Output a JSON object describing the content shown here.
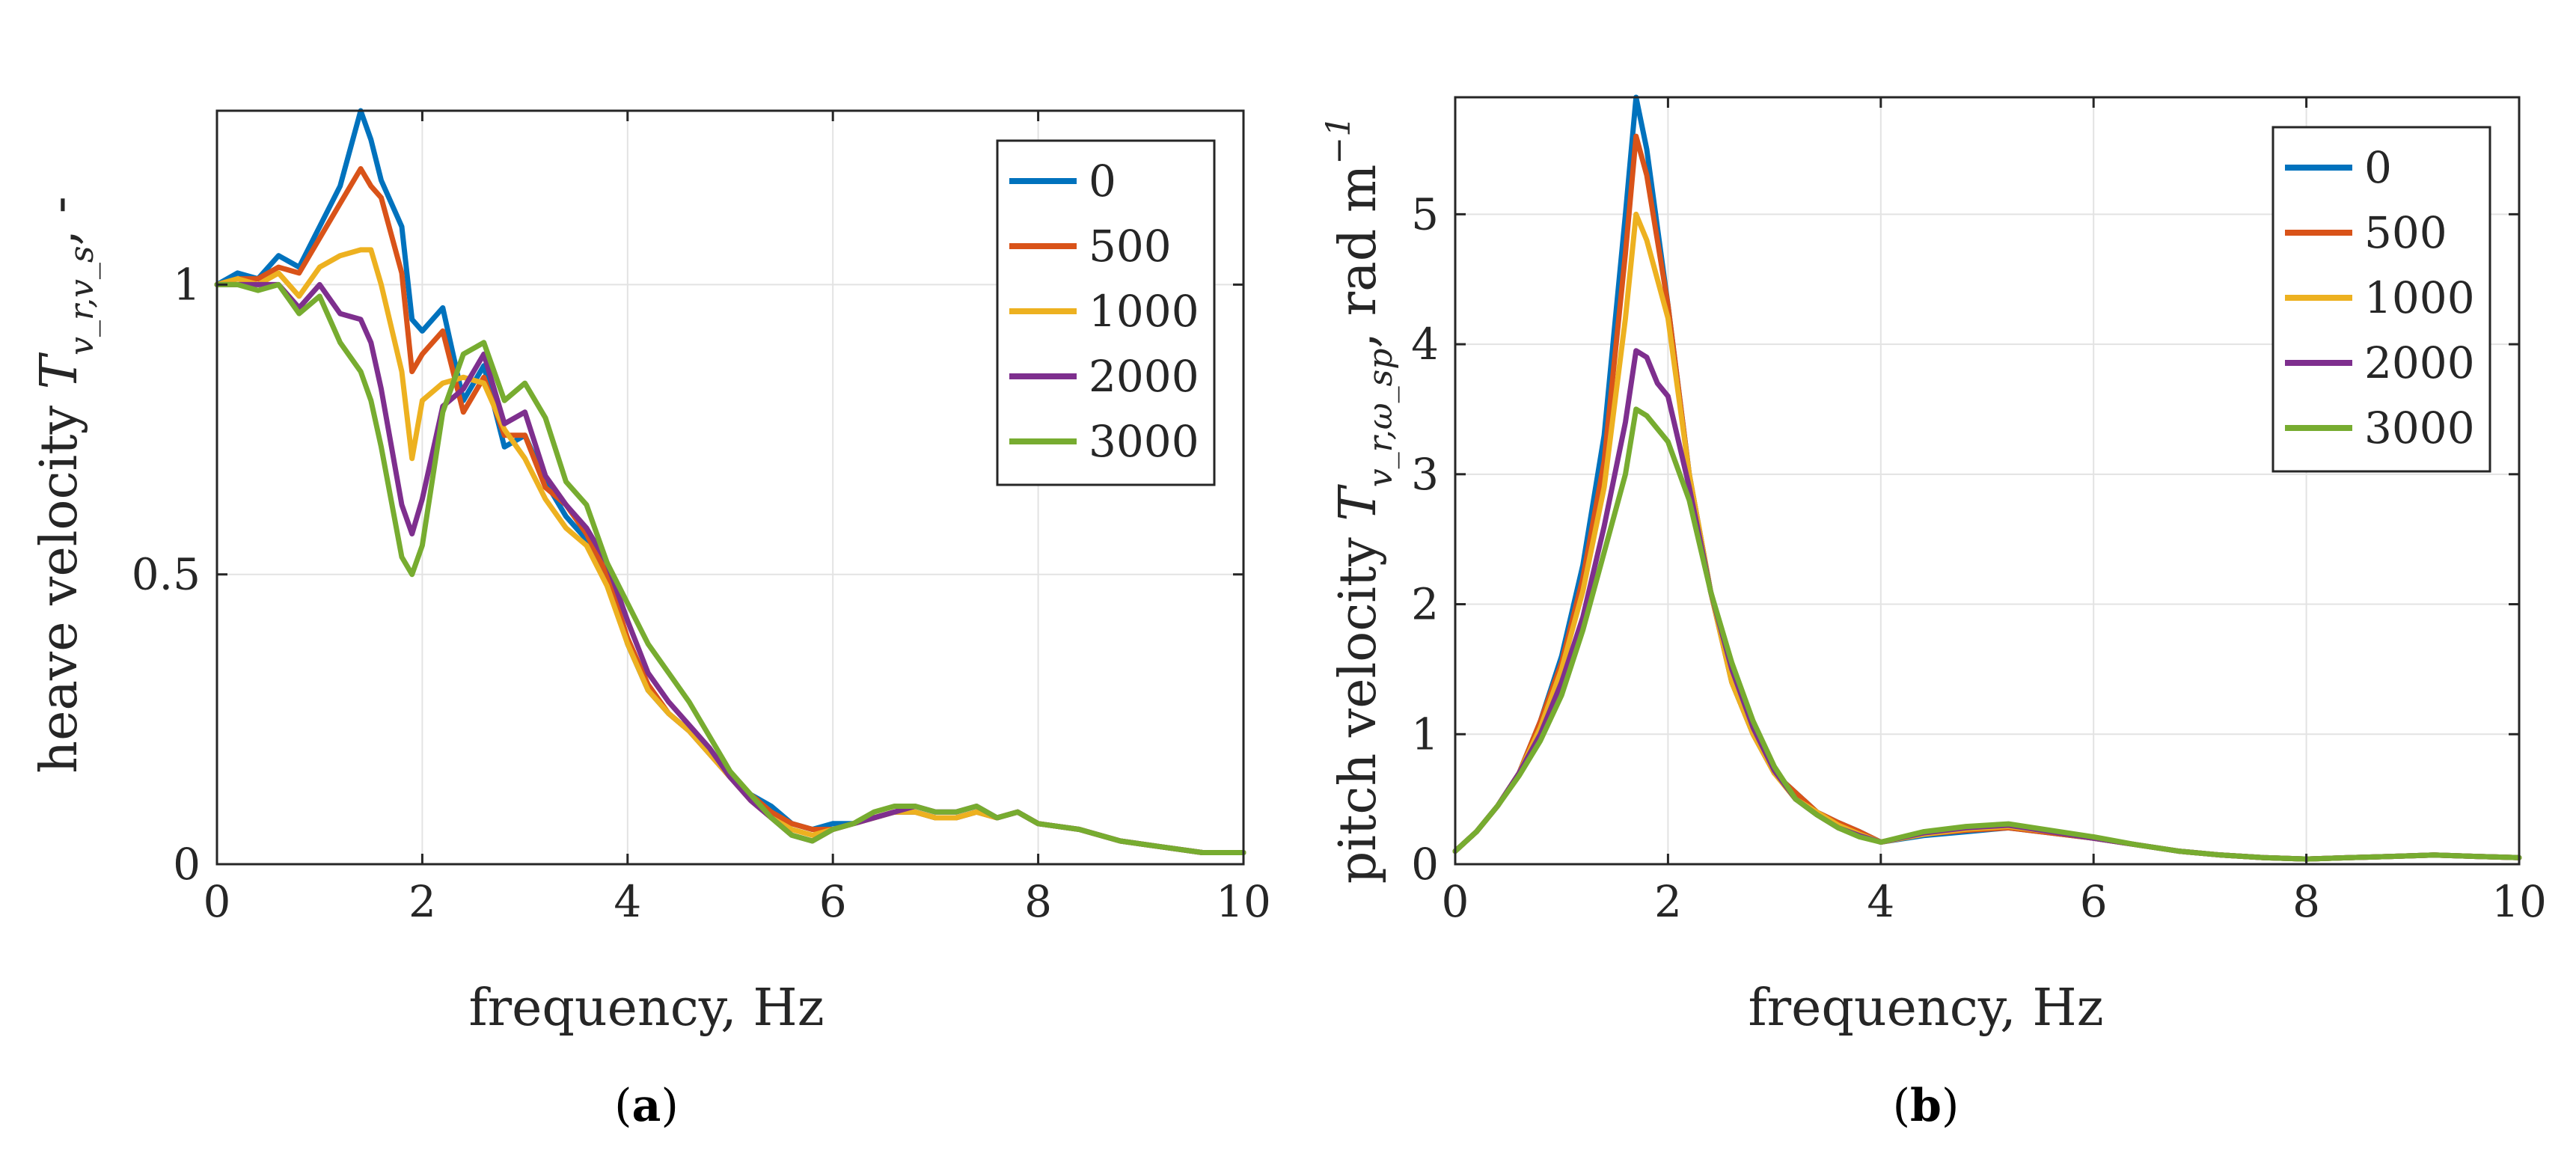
{
  "colors": {
    "s0": "#0072BD",
    "s500": "#D95319",
    "s1000": "#EDB120",
    "s2000": "#7E2F8E",
    "s3000": "#77AC30",
    "grid": "#e3e3e3",
    "axis": "#262626"
  },
  "chart_data": [
    {
      "type": "line",
      "panel": "(a)",
      "panel_paren_open": "(",
      "panel_letter": "a",
      "panel_paren_close": ")",
      "xlabel": "frequency, Hz",
      "ylabel_main": "heave velocity ",
      "ylabel_symbol": "T",
      "ylabel_sub": "v_r,v_s",
      "ylabel_tail": ", -",
      "xlim": [
        0,
        10
      ],
      "ylim": [
        0,
        1.3
      ],
      "xticks": [
        0,
        2,
        4,
        6,
        8,
        10
      ],
      "xtick_labels": [
        "0",
        "2",
        "4",
        "6",
        "8",
        "10"
      ],
      "yticks": [
        0,
        0.5,
        1
      ],
      "ytick_labels": [
        "0",
        "0.5",
        "1"
      ],
      "legend_position": "top-right",
      "series": [
        {
          "name": "0",
          "color_key": "s0",
          "x": [
            0,
            0.2,
            0.4,
            0.6,
            0.8,
            1.0,
            1.2,
            1.4,
            1.5,
            1.6,
            1.8,
            1.9,
            2.0,
            2.2,
            2.4,
            2.6,
            2.8,
            3.0,
            3.2,
            3.4,
            3.6,
            3.8,
            4.0,
            4.2,
            4.4,
            4.6,
            4.8,
            5.0,
            5.2,
            5.4,
            5.6,
            5.8,
            6.0,
            6.2,
            6.4,
            6.6,
            6.8,
            7.0,
            7.2,
            7.4,
            7.6,
            7.8,
            8.0,
            8.4,
            8.8,
            9.2,
            9.6,
            10.0
          ],
          "y": [
            1.0,
            1.02,
            1.01,
            1.05,
            1.03,
            1.1,
            1.17,
            1.3,
            1.25,
            1.18,
            1.1,
            0.94,
            0.92,
            0.96,
            0.8,
            0.86,
            0.72,
            0.74,
            0.66,
            0.6,
            0.56,
            0.5,
            0.38,
            0.3,
            0.26,
            0.23,
            0.19,
            0.15,
            0.12,
            0.1,
            0.07,
            0.06,
            0.07,
            0.07,
            0.08,
            0.09,
            0.09,
            0.08,
            0.08,
            0.09,
            0.08,
            0.09,
            0.07,
            0.06,
            0.04,
            0.03,
            0.02,
            0.02
          ]
        },
        {
          "name": "500",
          "color_key": "s500",
          "x": [
            0,
            0.2,
            0.4,
            0.6,
            0.8,
            1.0,
            1.2,
            1.4,
            1.5,
            1.6,
            1.8,
            1.9,
            2.0,
            2.2,
            2.4,
            2.6,
            2.8,
            3.0,
            3.2,
            3.4,
            3.6,
            3.8,
            4.0,
            4.2,
            4.4,
            4.6,
            4.8,
            5.0,
            5.2,
            5.4,
            5.6,
            5.8,
            6.0,
            6.2,
            6.4,
            6.6,
            6.8,
            7.0,
            7.2,
            7.4,
            7.6,
            7.8,
            8.0,
            8.4,
            8.8,
            9.2,
            9.6,
            10.0
          ],
          "y": [
            1.0,
            1.01,
            1.01,
            1.03,
            1.02,
            1.08,
            1.14,
            1.2,
            1.17,
            1.15,
            1.02,
            0.85,
            0.88,
            0.92,
            0.78,
            0.84,
            0.74,
            0.74,
            0.65,
            0.62,
            0.57,
            0.5,
            0.39,
            0.31,
            0.26,
            0.23,
            0.19,
            0.15,
            0.12,
            0.09,
            0.07,
            0.06,
            0.06,
            0.07,
            0.08,
            0.09,
            0.09,
            0.08,
            0.08,
            0.09,
            0.08,
            0.09,
            0.07,
            0.06,
            0.04,
            0.03,
            0.02,
            0.02
          ]
        },
        {
          "name": "1000",
          "color_key": "s1000",
          "x": [
            0,
            0.2,
            0.4,
            0.6,
            0.8,
            1.0,
            1.2,
            1.4,
            1.5,
            1.6,
            1.8,
            1.9,
            2.0,
            2.2,
            2.4,
            2.6,
            2.8,
            3.0,
            3.2,
            3.4,
            3.6,
            3.8,
            4.0,
            4.2,
            4.4,
            4.6,
            4.8,
            5.0,
            5.2,
            5.4,
            5.6,
            5.8,
            6.0,
            6.2,
            6.4,
            6.6,
            6.8,
            7.0,
            7.2,
            7.4,
            7.6,
            7.8,
            8.0,
            8.4,
            8.8,
            9.2,
            9.6,
            10.0
          ],
          "y": [
            1.0,
            1.01,
            1.0,
            1.02,
            0.98,
            1.03,
            1.05,
            1.06,
            1.06,
            1.0,
            0.85,
            0.7,
            0.8,
            0.83,
            0.84,
            0.83,
            0.75,
            0.7,
            0.63,
            0.58,
            0.55,
            0.48,
            0.38,
            0.3,
            0.26,
            0.23,
            0.19,
            0.15,
            0.11,
            0.08,
            0.06,
            0.05,
            0.06,
            0.07,
            0.08,
            0.09,
            0.09,
            0.08,
            0.08,
            0.09,
            0.08,
            0.09,
            0.07,
            0.06,
            0.04,
            0.03,
            0.02,
            0.02
          ]
        },
        {
          "name": "2000",
          "color_key": "s2000",
          "x": [
            0,
            0.2,
            0.4,
            0.6,
            0.8,
            1.0,
            1.2,
            1.4,
            1.5,
            1.6,
            1.8,
            1.9,
            2.0,
            2.2,
            2.4,
            2.6,
            2.8,
            3.0,
            3.2,
            3.4,
            3.6,
            3.8,
            4.0,
            4.2,
            4.4,
            4.6,
            4.8,
            5.0,
            5.2,
            5.4,
            5.6,
            5.8,
            6.0,
            6.2,
            6.4,
            6.6,
            6.8,
            7.0,
            7.2,
            7.4,
            7.6,
            7.8,
            8.0,
            8.4,
            8.8,
            9.2,
            9.6,
            10.0
          ],
          "y": [
            1.0,
            1.0,
            1.0,
            1.0,
            0.96,
            1.0,
            0.95,
            0.94,
            0.9,
            0.82,
            0.62,
            0.57,
            0.63,
            0.79,
            0.82,
            0.88,
            0.76,
            0.78,
            0.67,
            0.62,
            0.58,
            0.52,
            0.42,
            0.33,
            0.28,
            0.24,
            0.2,
            0.15,
            0.11,
            0.08,
            0.05,
            0.04,
            0.06,
            0.07,
            0.08,
            0.09,
            0.1,
            0.09,
            0.09,
            0.1,
            0.08,
            0.09,
            0.07,
            0.06,
            0.04,
            0.03,
            0.02,
            0.02
          ]
        },
        {
          "name": "3000",
          "color_key": "s3000",
          "x": [
            0,
            0.2,
            0.4,
            0.6,
            0.8,
            1.0,
            1.2,
            1.4,
            1.5,
            1.6,
            1.8,
            1.9,
            2.0,
            2.2,
            2.4,
            2.6,
            2.8,
            3.0,
            3.2,
            3.4,
            3.6,
            3.8,
            4.0,
            4.2,
            4.4,
            4.6,
            4.8,
            5.0,
            5.2,
            5.4,
            5.6,
            5.8,
            6.0,
            6.2,
            6.4,
            6.6,
            6.8,
            7.0,
            7.2,
            7.4,
            7.6,
            7.8,
            8.0,
            8.4,
            8.8,
            9.2,
            9.6,
            10.0
          ],
          "y": [
            1.0,
            1.0,
            0.99,
            1.0,
            0.95,
            0.98,
            0.9,
            0.85,
            0.8,
            0.72,
            0.53,
            0.5,
            0.55,
            0.78,
            0.88,
            0.9,
            0.8,
            0.83,
            0.77,
            0.66,
            0.62,
            0.52,
            0.45,
            0.38,
            0.33,
            0.28,
            0.22,
            0.16,
            0.12,
            0.08,
            0.05,
            0.04,
            0.06,
            0.07,
            0.09,
            0.1,
            0.1,
            0.09,
            0.09,
            0.1,
            0.08,
            0.09,
            0.07,
            0.06,
            0.04,
            0.03,
            0.02,
            0.02
          ]
        }
      ]
    },
    {
      "type": "line",
      "panel": "(b)",
      "panel_paren_open": "(",
      "panel_letter": "b",
      "panel_paren_close": ")",
      "xlabel": "frequency, Hz",
      "ylabel_main": "pitch velocity ",
      "ylabel_symbol": "T",
      "ylabel_sub": "v_r,ω_sp",
      "ylabel_tail": ", rad m",
      "ylabel_sup": "−1",
      "xlim": [
        0,
        10
      ],
      "ylim": [
        0,
        5.9
      ],
      "xticks": [
        0,
        2,
        4,
        6,
        8,
        10
      ],
      "xtick_labels": [
        "0",
        "2",
        "4",
        "6",
        "8",
        "10"
      ],
      "yticks": [
        0,
        1,
        2,
        3,
        4,
        5
      ],
      "ytick_labels": [
        "0",
        "1",
        "2",
        "3",
        "4",
        "5"
      ],
      "legend_position": "top-right",
      "series": [
        {
          "name": "0",
          "color_key": "s0",
          "x": [
            0,
            0.2,
            0.4,
            0.6,
            0.8,
            1.0,
            1.2,
            1.4,
            1.6,
            1.7,
            1.8,
            1.9,
            2.0,
            2.2,
            2.4,
            2.6,
            2.8,
            3.0,
            3.2,
            3.4,
            3.6,
            3.8,
            4.0,
            4.4,
            4.8,
            5.2,
            5.6,
            6.0,
            6.4,
            6.8,
            7.2,
            7.6,
            8.0,
            8.4,
            8.8,
            9.2,
            9.6,
            10.0
          ],
          "y": [
            0.1,
            0.25,
            0.45,
            0.7,
            1.1,
            1.6,
            2.3,
            3.3,
            5.0,
            5.9,
            5.5,
            4.9,
            4.3,
            3.0,
            2.1,
            1.4,
            1.0,
            0.7,
            0.55,
            0.4,
            0.32,
            0.25,
            0.17,
            0.22,
            0.25,
            0.28,
            0.24,
            0.2,
            0.15,
            0.1,
            0.07,
            0.05,
            0.04,
            0.05,
            0.06,
            0.07,
            0.06,
            0.05
          ]
        },
        {
          "name": "500",
          "color_key": "s500",
          "x": [
            0,
            0.2,
            0.4,
            0.6,
            0.8,
            1.0,
            1.2,
            1.4,
            1.6,
            1.7,
            1.8,
            1.9,
            2.0,
            2.2,
            2.4,
            2.6,
            2.8,
            3.0,
            3.2,
            3.4,
            3.6,
            3.8,
            4.0,
            4.4,
            4.8,
            5.2,
            5.6,
            6.0,
            6.4,
            6.8,
            7.2,
            7.6,
            8.0,
            8.4,
            8.8,
            9.2,
            9.6,
            10.0
          ],
          "y": [
            0.1,
            0.25,
            0.45,
            0.7,
            1.1,
            1.55,
            2.2,
            3.1,
            4.7,
            5.6,
            5.3,
            4.8,
            4.3,
            3.0,
            2.1,
            1.4,
            1.0,
            0.7,
            0.55,
            0.4,
            0.32,
            0.25,
            0.17,
            0.23,
            0.26,
            0.28,
            0.24,
            0.2,
            0.15,
            0.1,
            0.07,
            0.05,
            0.04,
            0.05,
            0.06,
            0.07,
            0.06,
            0.05
          ]
        },
        {
          "name": "1000",
          "color_key": "s1000",
          "x": [
            0,
            0.2,
            0.4,
            0.6,
            0.8,
            1.0,
            1.2,
            1.4,
            1.6,
            1.7,
            1.8,
            1.9,
            2.0,
            2.2,
            2.4,
            2.6,
            2.8,
            3.0,
            3.2,
            3.4,
            3.6,
            3.8,
            4.0,
            4.4,
            4.8,
            5.2,
            5.6,
            6.0,
            6.4,
            6.8,
            7.2,
            7.6,
            8.0,
            8.4,
            8.8,
            9.2,
            9.6,
            10.0
          ],
          "y": [
            0.1,
            0.25,
            0.45,
            0.7,
            1.05,
            1.5,
            2.1,
            2.9,
            4.2,
            5.0,
            4.8,
            4.5,
            4.2,
            3.0,
            2.1,
            1.4,
            1.0,
            0.7,
            0.5,
            0.4,
            0.3,
            0.23,
            0.17,
            0.23,
            0.27,
            0.29,
            0.25,
            0.2,
            0.15,
            0.1,
            0.07,
            0.05,
            0.04,
            0.05,
            0.06,
            0.07,
            0.06,
            0.05
          ]
        },
        {
          "name": "2000",
          "color_key": "s2000",
          "x": [
            0,
            0.2,
            0.4,
            0.6,
            0.8,
            1.0,
            1.2,
            1.4,
            1.6,
            1.7,
            1.8,
            1.9,
            2.0,
            2.2,
            2.4,
            2.6,
            2.8,
            3.0,
            3.2,
            3.4,
            3.6,
            3.8,
            4.0,
            4.4,
            4.8,
            5.2,
            5.6,
            6.0,
            6.4,
            6.8,
            7.2,
            7.6,
            8.0,
            8.4,
            8.8,
            9.2,
            9.6,
            10.0
          ],
          "y": [
            0.1,
            0.25,
            0.45,
            0.7,
            1.0,
            1.4,
            1.9,
            2.6,
            3.4,
            3.95,
            3.9,
            3.7,
            3.6,
            2.9,
            2.1,
            1.5,
            1.05,
            0.72,
            0.5,
            0.38,
            0.28,
            0.22,
            0.17,
            0.24,
            0.28,
            0.3,
            0.25,
            0.2,
            0.15,
            0.1,
            0.07,
            0.05,
            0.04,
            0.05,
            0.06,
            0.07,
            0.06,
            0.05
          ]
        },
        {
          "name": "3000",
          "color_key": "s3000",
          "x": [
            0,
            0.2,
            0.4,
            0.6,
            0.8,
            1.0,
            1.2,
            1.4,
            1.6,
            1.7,
            1.8,
            1.9,
            2.0,
            2.2,
            2.4,
            2.6,
            2.8,
            3.0,
            3.2,
            3.4,
            3.6,
            3.8,
            4.0,
            4.4,
            4.8,
            5.2,
            5.6,
            6.0,
            6.4,
            6.8,
            7.2,
            7.6,
            8.0,
            8.4,
            8.8,
            9.2,
            9.6,
            10.0
          ],
          "y": [
            0.1,
            0.25,
            0.45,
            0.68,
            0.95,
            1.3,
            1.8,
            2.4,
            3.0,
            3.5,
            3.45,
            3.35,
            3.25,
            2.8,
            2.1,
            1.55,
            1.1,
            0.75,
            0.5,
            0.38,
            0.28,
            0.21,
            0.17,
            0.25,
            0.29,
            0.31,
            0.26,
            0.21,
            0.15,
            0.1,
            0.07,
            0.05,
            0.04,
            0.05,
            0.06,
            0.07,
            0.06,
            0.05
          ]
        }
      ]
    }
  ]
}
